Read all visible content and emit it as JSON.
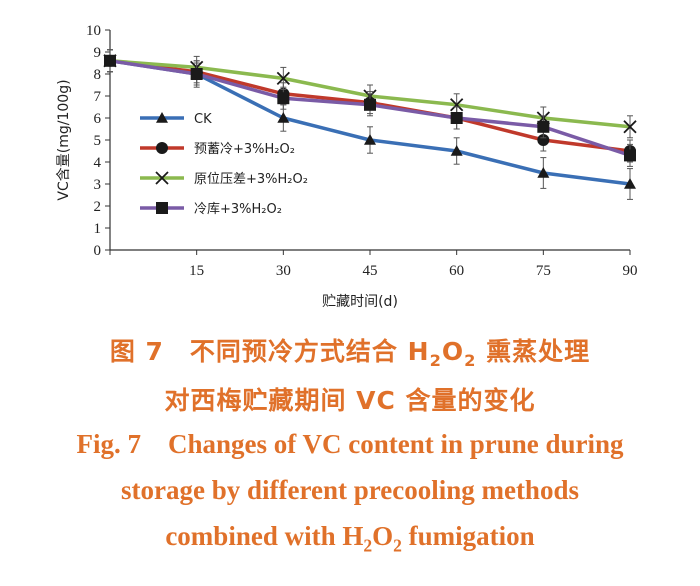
{
  "chart_data": {
    "type": "line",
    "title": "",
    "xlabel": "贮藏时间(d)",
    "ylabel": "VC含量(mg/100g)",
    "x": [
      0,
      15,
      30,
      45,
      60,
      75,
      90
    ],
    "x_tick_labels": [
      "",
      "15",
      "30",
      "45",
      "60",
      "75",
      "90"
    ],
    "xlim": [
      0,
      90
    ],
    "ylim": [
      0,
      10
    ],
    "y_ticks": [
      0,
      1,
      2,
      3,
      4,
      5,
      6,
      7,
      8,
      9,
      10
    ],
    "grid": false,
    "legend_position": "left-middle",
    "series": [
      {
        "name": "CK",
        "color": "#3a6fb5",
        "marker": "triangle",
        "values": [
          8.6,
          8.0,
          6.0,
          5.0,
          4.5,
          3.5,
          3.0
        ],
        "errors": [
          0.5,
          0.6,
          0.6,
          0.6,
          0.6,
          0.7,
          0.7
        ]
      },
      {
        "name": "预蓄冷+3%H₂O₂",
        "color": "#c0392b",
        "marker": "circle",
        "values": [
          8.6,
          8.1,
          7.1,
          6.7,
          6.0,
          5.0,
          4.5
        ],
        "errors": [
          0.5,
          0.5,
          0.5,
          0.5,
          0.5,
          0.5,
          0.5
        ]
      },
      {
        "name": "原位压差+3%H₂O₂",
        "color": "#8bb94f",
        "marker": "x",
        "values": [
          8.6,
          8.3,
          7.8,
          7.0,
          6.6,
          6.0,
          5.6
        ],
        "errors": [
          0.5,
          0.5,
          0.5,
          0.5,
          0.5,
          0.5,
          0.5
        ]
      },
      {
        "name": "冷库+3%H₂O₂",
        "color": "#7a5ba6",
        "marker": "square",
        "values": [
          8.6,
          8.0,
          6.9,
          6.6,
          6.0,
          5.6,
          4.3
        ],
        "errors": [
          0.5,
          0.5,
          0.5,
          0.5,
          0.5,
          0.5,
          0.5
        ]
      }
    ]
  },
  "caption": {
    "cn_line1_pre": "图 7　不同预冷方式结合 H",
    "cn_line1_sub1": "2",
    "cn_line1_mid": "O",
    "cn_line1_sub2": "2",
    "cn_line1_post": " 熏蒸处理",
    "cn_line2": "对西梅贮藏期间 VC 含量的变化",
    "en_line1": "Fig. 7　Changes of VC content in prune during",
    "en_line2": "storage by different precooling methods",
    "en_line3_pre": "combined with H",
    "en_line3_sub1": "2",
    "en_line3_mid": "O",
    "en_line3_sub2": "2",
    "en_line3_post": " fumigation"
  }
}
